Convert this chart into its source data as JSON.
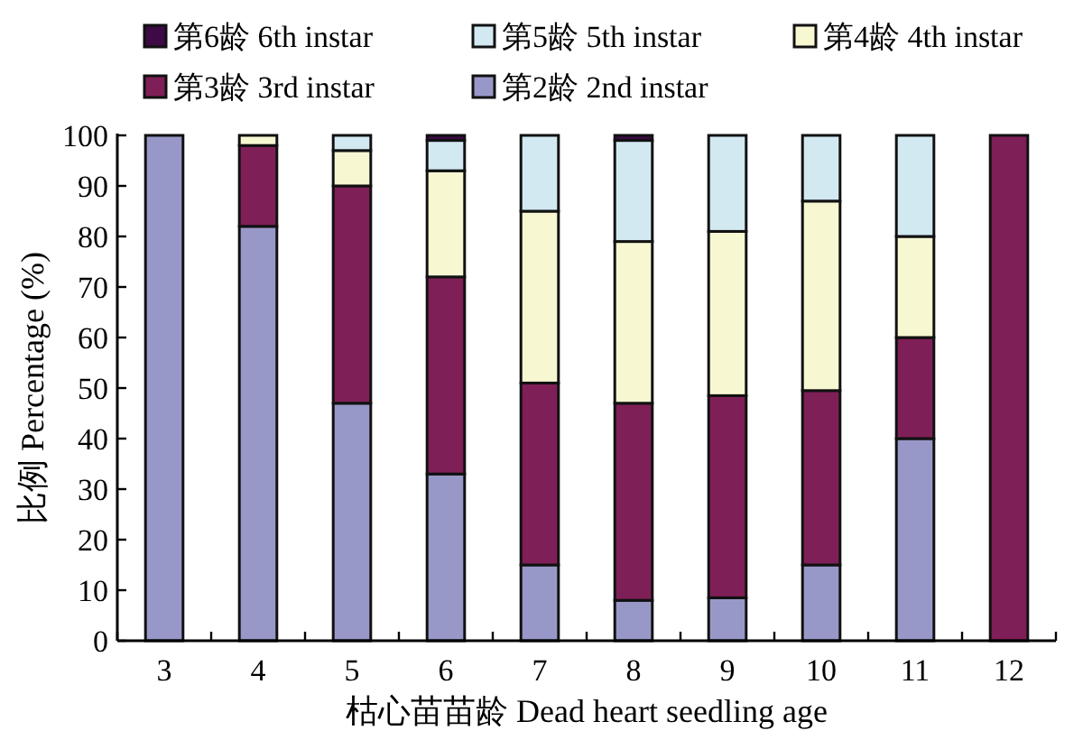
{
  "chart_data": {
    "type": "bar",
    "stacked": true,
    "xlabel": "枯心苗苗龄 Dead heart seedling age",
    "ylabel": "比例 Percentage (%)",
    "categories": [
      "3",
      "4",
      "5",
      "6",
      "7",
      "8",
      "9",
      "10",
      "11",
      "12"
    ],
    "series": [
      {
        "name": "第2龄 2nd instar",
        "color": "#9898c8",
        "values": [
          100,
          82,
          47,
          33,
          15,
          8,
          8.5,
          15,
          40,
          0
        ]
      },
      {
        "name": "第3龄 3rd instar",
        "color": "#7f1f57",
        "values": [
          0,
          16,
          43,
          39,
          36,
          39,
          40,
          34.5,
          20,
          100
        ]
      },
      {
        "name": "第4龄 4th instar",
        "color": "#f7f8d2",
        "values": [
          0,
          2,
          7,
          21,
          34,
          32,
          32.5,
          37.5,
          20,
          0
        ]
      },
      {
        "name": "第5龄 5th instar",
        "color": "#d2e9f2",
        "values": [
          0,
          0,
          3,
          6,
          15,
          20,
          19,
          13,
          20,
          0
        ]
      },
      {
        "name": "第6龄 6th instar",
        "color": "#3d0a45",
        "values": [
          0,
          0,
          0,
          1,
          0,
          1,
          0,
          0,
          0,
          0
        ]
      }
    ],
    "ylim": [
      0,
      100
    ],
    "yticks": [
      0,
      10,
      20,
      30,
      40,
      50,
      60,
      70,
      80,
      90,
      100
    ],
    "legend": "top",
    "grid": false
  }
}
